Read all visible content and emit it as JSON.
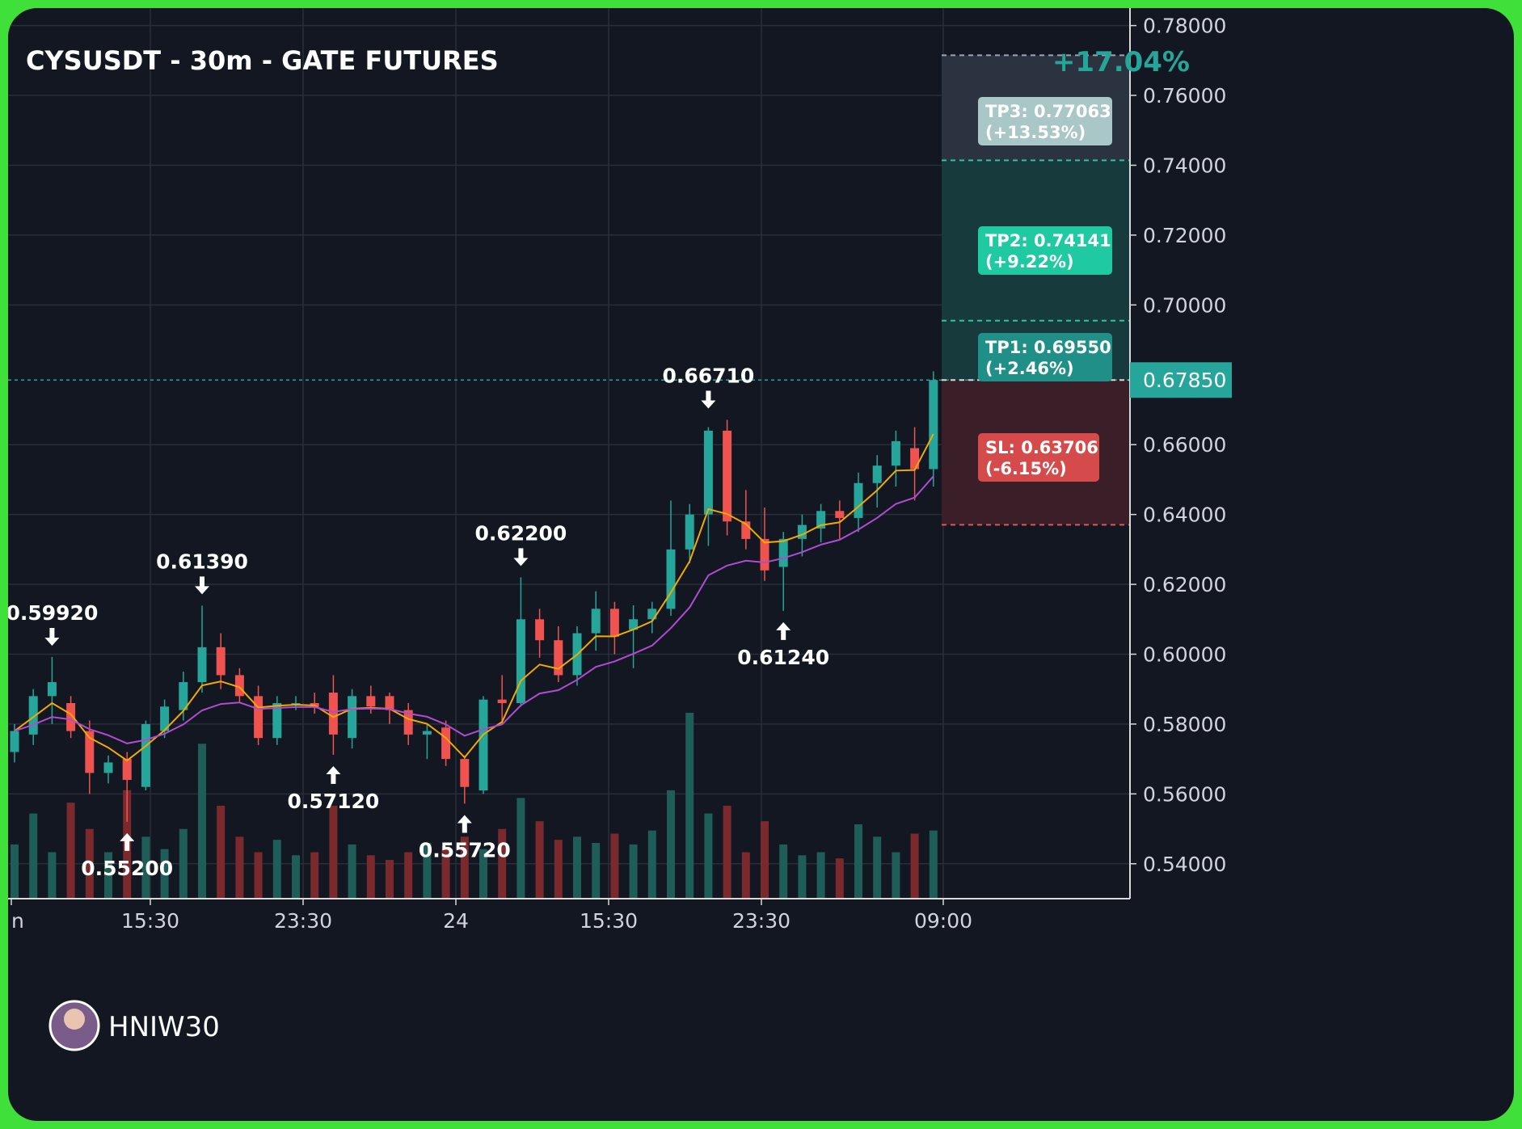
{
  "chart_data": {
    "type": "candlestick",
    "title": "CYSUSDT - 30m - GATE FUTURES",
    "pnl_label": "+17.04%",
    "price_axis": {
      "range": [
        0.53,
        0.785
      ],
      "ticks": [
        "0.78000",
        "0.76000",
        "0.74000",
        "0.72000",
        "0.70000",
        "0.66000",
        "0.64000",
        "0.62000",
        "0.60000",
        "0.58000",
        "0.56000",
        "0.54000"
      ],
      "tick_values": [
        0.78,
        0.76,
        0.74,
        0.72,
        0.7,
        0.66,
        0.64,
        0.62,
        0.6,
        0.58,
        0.56,
        0.54
      ]
    },
    "time_axis": {
      "labels": [
        "n",
        "15:30",
        "23:30",
        "24",
        "15:30",
        "23:30",
        "09:00"
      ]
    },
    "current_price": {
      "label": "0.67850",
      "value": 0.6785,
      "color": "#26a69a"
    },
    "levels": {
      "tp3": {
        "value": 0.77063,
        "label": "TP3: 0.77063",
        "pct": "(+13.53%)"
      },
      "tp2": {
        "value": 0.74141,
        "label": "TP2: 0.74141",
        "pct": "(+9.22%)"
      },
      "tp1": {
        "value": 0.6955,
        "label": "TP1: 0.69550",
        "pct": "(+2.46%)"
      },
      "sl": {
        "value": 0.63706,
        "label": "SL: 0.63706",
        "pct": "(-6.15%)"
      }
    },
    "annotations": [
      {
        "label": "0.59920",
        "value": 0.5992,
        "dir": "down",
        "index": 2
      },
      {
        "label": "0.55200",
        "value": 0.552,
        "dir": "up",
        "index": 6
      },
      {
        "label": "0.61390",
        "value": 0.6139,
        "dir": "down",
        "index": 10
      },
      {
        "label": "0.57120",
        "value": 0.5712,
        "dir": "up",
        "index": 17
      },
      {
        "label": "0.55720",
        "value": 0.5572,
        "dir": "up",
        "index": 24
      },
      {
        "label": "0.62200",
        "value": 0.622,
        "dir": "down",
        "index": 27
      },
      {
        "label": "0.66710",
        "value": 0.6671,
        "dir": "down",
        "index": 37
      },
      {
        "label": "0.61240",
        "value": 0.6124,
        "dir": "up",
        "index": 41
      }
    ],
    "candles": [
      {
        "o": 0.572,
        "h": 0.58,
        "l": 0.569,
        "c": 0.578
      },
      {
        "o": 0.577,
        "h": 0.59,
        "l": 0.574,
        "c": 0.588
      },
      {
        "o": 0.588,
        "h": 0.5992,
        "l": 0.58,
        "c": 0.592
      },
      {
        "o": 0.586,
        "h": 0.588,
        "l": 0.576,
        "c": 0.578
      },
      {
        "o": 0.578,
        "h": 0.581,
        "l": 0.56,
        "c": 0.566
      },
      {
        "o": 0.566,
        "h": 0.571,
        "l": 0.563,
        "c": 0.569
      },
      {
        "o": 0.57,
        "h": 0.572,
        "l": 0.552,
        "c": 0.564
      },
      {
        "o": 0.562,
        "h": 0.581,
        "l": 0.561,
        "c": 0.58
      },
      {
        "o": 0.578,
        "h": 0.587,
        "l": 0.576,
        "c": 0.585
      },
      {
        "o": 0.584,
        "h": 0.595,
        "l": 0.581,
        "c": 0.592
      },
      {
        "o": 0.592,
        "h": 0.6139,
        "l": 0.589,
        "c": 0.602
      },
      {
        "o": 0.602,
        "h": 0.606,
        "l": 0.59,
        "c": 0.594
      },
      {
        "o": 0.594,
        "h": 0.596,
        "l": 0.586,
        "c": 0.588
      },
      {
        "o": 0.588,
        "h": 0.591,
        "l": 0.574,
        "c": 0.576
      },
      {
        "o": 0.576,
        "h": 0.588,
        "l": 0.574,
        "c": 0.586
      },
      {
        "o": 0.586,
        "h": 0.588,
        "l": 0.584,
        "c": 0.586
      },
      {
        "o": 0.586,
        "h": 0.589,
        "l": 0.583,
        "c": 0.585
      },
      {
        "o": 0.589,
        "h": 0.594,
        "l": 0.5712,
        "c": 0.577
      },
      {
        "o": 0.576,
        "h": 0.59,
        "l": 0.573,
        "c": 0.588
      },
      {
        "o": 0.588,
        "h": 0.591,
        "l": 0.583,
        "c": 0.585
      },
      {
        "o": 0.588,
        "h": 0.589,
        "l": 0.58,
        "c": 0.584
      },
      {
        "o": 0.584,
        "h": 0.586,
        "l": 0.574,
        "c": 0.577
      },
      {
        "o": 0.577,
        "h": 0.58,
        "l": 0.57,
        "c": 0.578
      },
      {
        "o": 0.579,
        "h": 0.581,
        "l": 0.568,
        "c": 0.57
      },
      {
        "o": 0.57,
        "h": 0.571,
        "l": 0.5572,
        "c": 0.562
      },
      {
        "o": 0.561,
        "h": 0.588,
        "l": 0.56,
        "c": 0.587
      },
      {
        "o": 0.587,
        "h": 0.594,
        "l": 0.58,
        "c": 0.586
      },
      {
        "o": 0.586,
        "h": 0.622,
        "l": 0.585,
        "c": 0.61
      },
      {
        "o": 0.61,
        "h": 0.613,
        "l": 0.599,
        "c": 0.604
      },
      {
        "o": 0.604,
        "h": 0.608,
        "l": 0.592,
        "c": 0.594
      },
      {
        "o": 0.594,
        "h": 0.608,
        "l": 0.591,
        "c": 0.606
      },
      {
        "o": 0.606,
        "h": 0.618,
        "l": 0.601,
        "c": 0.613
      },
      {
        "o": 0.613,
        "h": 0.615,
        "l": 0.6,
        "c": 0.605
      },
      {
        "o": 0.607,
        "h": 0.614,
        "l": 0.596,
        "c": 0.61
      },
      {
        "o": 0.61,
        "h": 0.615,
        "l": 0.606,
        "c": 0.613
      },
      {
        "o": 0.613,
        "h": 0.644,
        "l": 0.611,
        "c": 0.63
      },
      {
        "o": 0.63,
        "h": 0.643,
        "l": 0.626,
        "c": 0.64
      },
      {
        "o": 0.64,
        "h": 0.665,
        "l": 0.631,
        "c": 0.664
      },
      {
        "o": 0.664,
        "h": 0.6671,
        "l": 0.634,
        "c": 0.638
      },
      {
        "o": 0.638,
        "h": 0.647,
        "l": 0.63,
        "c": 0.633
      },
      {
        "o": 0.633,
        "h": 0.642,
        "l": 0.621,
        "c": 0.624
      },
      {
        "o": 0.625,
        "h": 0.635,
        "l": 0.6124,
        "c": 0.633
      },
      {
        "o": 0.633,
        "h": 0.64,
        "l": 0.628,
        "c": 0.637
      },
      {
        "o": 0.636,
        "h": 0.643,
        "l": 0.632,
        "c": 0.641
      },
      {
        "o": 0.641,
        "h": 0.644,
        "l": 0.633,
        "c": 0.639
      },
      {
        "o": 0.639,
        "h": 0.652,
        "l": 0.635,
        "c": 0.649
      },
      {
        "o": 0.649,
        "h": 0.657,
        "l": 0.642,
        "c": 0.654
      },
      {
        "o": 0.654,
        "h": 0.664,
        "l": 0.648,
        "c": 0.661
      },
      {
        "o": 0.659,
        "h": 0.665,
        "l": 0.644,
        "c": 0.653
      },
      {
        "o": 0.653,
        "h": 0.681,
        "l": 0.648,
        "c": 0.6785
      }
    ],
    "volume": [
      0.35,
      0.55,
      0.3,
      0.62,
      0.45,
      0.3,
      0.7,
      0.4,
      0.32,
      0.45,
      1.0,
      0.6,
      0.4,
      0.3,
      0.38,
      0.28,
      0.3,
      0.6,
      0.35,
      0.28,
      0.25,
      0.3,
      0.36,
      0.34,
      0.4,
      0.32,
      0.45,
      0.65,
      0.5,
      0.38,
      0.4,
      0.36,
      0.42,
      0.35,
      0.44,
      0.7,
      1.2,
      0.55,
      0.6,
      0.3,
      0.5,
      0.35,
      0.28,
      0.3,
      0.26,
      0.48,
      0.4,
      0.3,
      0.42,
      0.44
    ],
    "ema_fast_color": "#f2a900",
    "ema_slow_color": "#b04ccf",
    "up_color": "#26a69a",
    "down_color": "#ef5350",
    "watermark": "HNIW30",
    "grid": true
  }
}
